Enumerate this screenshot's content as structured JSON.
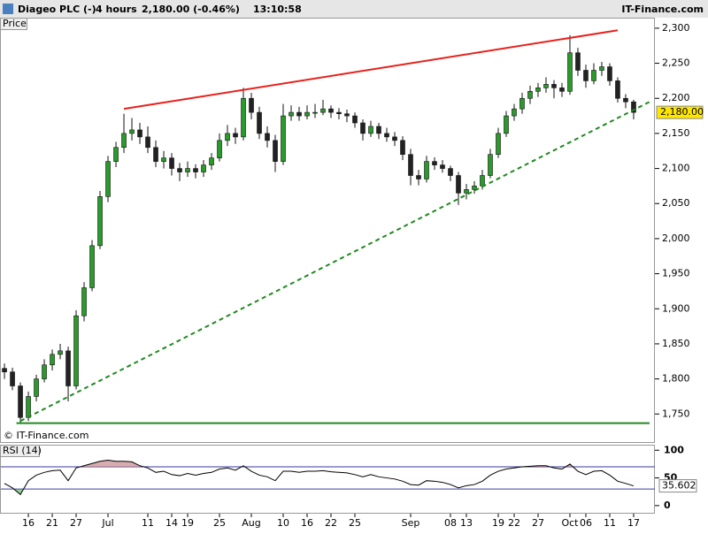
{
  "header": {
    "name": "Diageo PLC (-)",
    "interval": "4 hours",
    "quote": "2,180.00 (-0.46%)",
    "time": "13:10:58",
    "brand": "IT-Finance.com"
  },
  "chart_data": [
    {
      "type": "candlestick",
      "label": "Price",
      "watermark": "© IT-Finance.com",
      "up_color": "#2a9a2a",
      "down_color": "#222222",
      "xlim": [
        -0.56,
        81.67
      ],
      "xticks": [
        {
          "value": 3,
          "label": "16"
        },
        {
          "value": 6,
          "label": "21"
        },
        {
          "value": 9,
          "label": "27"
        },
        {
          "value": 13,
          "label": "Jul"
        },
        {
          "value": 18,
          "label": "11"
        },
        {
          "value": 21,
          "label": "14"
        },
        {
          "value": 23,
          "label": "19"
        },
        {
          "value": 27,
          "label": "25"
        },
        {
          "value": 31,
          "label": "Aug"
        },
        {
          "value": 35,
          "label": "10"
        },
        {
          "value": 38,
          "label": "16"
        },
        {
          "value": 41,
          "label": "22"
        },
        {
          "value": 44,
          "label": "25"
        },
        {
          "value": 51,
          "label": "Sep"
        },
        {
          "value": 56,
          "label": "08"
        },
        {
          "value": 58,
          "label": "13"
        },
        {
          "value": 62,
          "label": "19"
        },
        {
          "value": 64,
          "label": "22"
        },
        {
          "value": 67,
          "label": "27"
        },
        {
          "value": 71,
          "label": "Oct"
        },
        {
          "value": 73,
          "label": "06"
        },
        {
          "value": 76,
          "label": "11"
        },
        {
          "value": 79,
          "label": "17"
        }
      ],
      "ylim": [
        1710,
        2315
      ],
      "yticks": [
        {
          "value": 1750,
          "label": "1,750"
        },
        {
          "value": 1800,
          "label": "1,800"
        },
        {
          "value": 1850,
          "label": "1,850"
        },
        {
          "value": 1900,
          "label": "1,900"
        },
        {
          "value": 1950,
          "label": "1,950"
        },
        {
          "value": 2000,
          "label": "2,000"
        },
        {
          "value": 2050,
          "label": "2,050"
        },
        {
          "value": 2100,
          "label": "2,100"
        },
        {
          "value": 2150,
          "label": "2,150"
        },
        {
          "value": 2200,
          "label": "2,200"
        },
        {
          "value": 2250,
          "label": "2,250"
        },
        {
          "value": 2300,
          "label": "2,300"
        }
      ],
      "last_label": "2,180.00",
      "candles": [
        [
          1815,
          1822,
          1800,
          1810
        ],
        [
          1810,
          1816,
          1784,
          1790
        ],
        [
          1790,
          1795,
          1737,
          1745
        ],
        [
          1745,
          1782,
          1740,
          1775
        ],
        [
          1775,
          1806,
          1768,
          1800
        ],
        [
          1800,
          1828,
          1795,
          1820
        ],
        [
          1820,
          1842,
          1812,
          1835
        ],
        [
          1835,
          1850,
          1828,
          1840
        ],
        [
          1840,
          1846,
          1768,
          1790
        ],
        [
          1790,
          1898,
          1785,
          1890
        ],
        [
          1890,
          1938,
          1882,
          1930
        ],
        [
          1930,
          1998,
          1925,
          1990
        ],
        [
          1990,
          2068,
          1985,
          2060
        ],
        [
          2060,
          2118,
          2052,
          2110
        ],
        [
          2110,
          2138,
          2102,
          2130
        ],
        [
          2130,
          2178,
          2122,
          2150
        ],
        [
          2150,
          2172,
          2140,
          2155
        ],
        [
          2155,
          2165,
          2135,
          2145
        ],
        [
          2145,
          2160,
          2122,
          2130
        ],
        [
          2130,
          2140,
          2102,
          2110
        ],
        [
          2110,
          2125,
          2100,
          2115
        ],
        [
          2115,
          2122,
          2090,
          2100
        ],
        [
          2100,
          2108,
          2082,
          2095
        ],
        [
          2095,
          2110,
          2088,
          2100
        ],
        [
          2100,
          2106,
          2086,
          2095
        ],
        [
          2095,
          2112,
          2088,
          2105
        ],
        [
          2105,
          2122,
          2098,
          2115
        ],
        [
          2115,
          2150,
          2110,
          2140
        ],
        [
          2140,
          2162,
          2132,
          2150
        ],
        [
          2150,
          2158,
          2135,
          2145
        ],
        [
          2145,
          2215,
          2140,
          2200
        ],
        [
          2200,
          2208,
          2170,
          2180
        ],
        [
          2180,
          2188,
          2142,
          2150
        ],
        [
          2150,
          2160,
          2130,
          2140
        ],
        [
          2140,
          2148,
          2095,
          2110
        ],
        [
          2110,
          2192,
          2105,
          2175
        ],
        [
          2175,
          2190,
          2168,
          2180
        ],
        [
          2180,
          2188,
          2168,
          2175
        ],
        [
          2175,
          2190,
          2170,
          2180
        ],
        [
          2180,
          2192,
          2172,
          2180
        ],
        [
          2180,
          2198,
          2176,
          2185
        ],
        [
          2185,
          2190,
          2172,
          2180
        ],
        [
          2180,
          2186,
          2170,
          2178
        ],
        [
          2178,
          2184,
          2166,
          2175
        ],
        [
          2175,
          2180,
          2158,
          2165
        ],
        [
          2165,
          2170,
          2140,
          2150
        ],
        [
          2150,
          2168,
          2145,
          2160
        ],
        [
          2160,
          2165,
          2142,
          2150
        ],
        [
          2150,
          2158,
          2138,
          2145
        ],
        [
          2145,
          2152,
          2132,
          2140
        ],
        [
          2140,
          2146,
          2112,
          2120
        ],
        [
          2120,
          2128,
          2076,
          2090
        ],
        [
          2090,
          2098,
          2076,
          2085
        ],
        [
          2085,
          2118,
          2080,
          2110
        ],
        [
          2110,
          2116,
          2098,
          2105
        ],
        [
          2105,
          2112,
          2094,
          2100
        ],
        [
          2100,
          2104,
          2082,
          2090
        ],
        [
          2090,
          2095,
          2048,
          2065
        ],
        [
          2065,
          2078,
          2056,
          2070
        ],
        [
          2070,
          2082,
          2064,
          2075
        ],
        [
          2075,
          2098,
          2070,
          2090
        ],
        [
          2090,
          2128,
          2086,
          2120
        ],
        [
          2120,
          2158,
          2115,
          2150
        ],
        [
          2150,
          2182,
          2145,
          2175
        ],
        [
          2175,
          2192,
          2168,
          2185
        ],
        [
          2185,
          2208,
          2178,
          2200
        ],
        [
          2200,
          2218,
          2192,
          2210
        ],
        [
          2210,
          2222,
          2202,
          2215
        ],
        [
          2215,
          2230,
          2208,
          2220
        ],
        [
          2220,
          2226,
          2200,
          2215
        ],
        [
          2215,
          2222,
          2202,
          2210
        ],
        [
          2210,
          2290,
          2205,
          2265
        ],
        [
          2265,
          2272,
          2232,
          2240
        ],
        [
          2240,
          2248,
          2215,
          2225
        ],
        [
          2225,
          2250,
          2220,
          2240
        ],
        [
          2240,
          2252,
          2232,
          2245
        ],
        [
          2245,
          2250,
          2218,
          2225
        ],
        [
          2225,
          2230,
          2194,
          2200
        ],
        [
          2200,
          2206,
          2186,
          2195
        ],
        [
          2195,
          2198,
          2170,
          2180
        ]
      ],
      "trendlines": [
        {
          "color": "#e8211b",
          "dashed": false,
          "x": [
            15,
            77
          ],
          "y": [
            2185,
            2297
          ]
        },
        {
          "color": "#1f8a1f",
          "dashed": true,
          "x": [
            2,
            81
          ],
          "y": [
            1740,
            2195
          ]
        },
        {
          "color": "#1f8a1f",
          "dashed": false,
          "x": [
            1.5,
            81
          ],
          "y": [
            1737,
            1737
          ]
        }
      ]
    },
    {
      "type": "line",
      "label": "RSI (14)",
      "color": "#000000",
      "ylim": [
        -13,
        110
      ],
      "yticks": [
        0,
        50,
        100
      ],
      "bands": [
        30,
        70
      ],
      "band_color": "#3a3aa0",
      "values": [
        40,
        32,
        20,
        45,
        55,
        60,
        63,
        64,
        45,
        68,
        72,
        76,
        80,
        82,
        80,
        80,
        79,
        72,
        68,
        60,
        62,
        56,
        54,
        58,
        55,
        58,
        60,
        66,
        68,
        64,
        72,
        62,
        55,
        52,
        45,
        62,
        62,
        60,
        62,
        62,
        63,
        61,
        60,
        59,
        56,
        52,
        56,
        52,
        50,
        48,
        44,
        38,
        37,
        45,
        44,
        42,
        38,
        32,
        36,
        38,
        44,
        55,
        62,
        66,
        68,
        70,
        71,
        72,
        72,
        68,
        66,
        75,
        62,
        56,
        62,
        63,
        55,
        44,
        40,
        35.602
      ]
    }
  ]
}
